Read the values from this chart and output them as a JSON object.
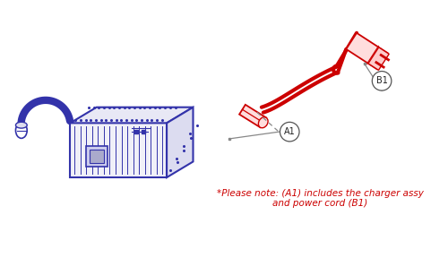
{
  "bg_color": "#ffffff",
  "charger_color": "#3333aa",
  "charger_lw": 1.5,
  "cord_color": "#cc0000",
  "cord_lw": 3.0,
  "note_color": "#cc0000",
  "label_color": "#333333",
  "callout_color": "#888888",
  "note_text_line1": "*Please note: (A1) includes the charger assy",
  "note_text_line2": "and power cord (B1)",
  "label_A1": "A1",
  "label_B1": "B1",
  "figsize": [
    5.0,
    3.07
  ],
  "dpi": 100
}
